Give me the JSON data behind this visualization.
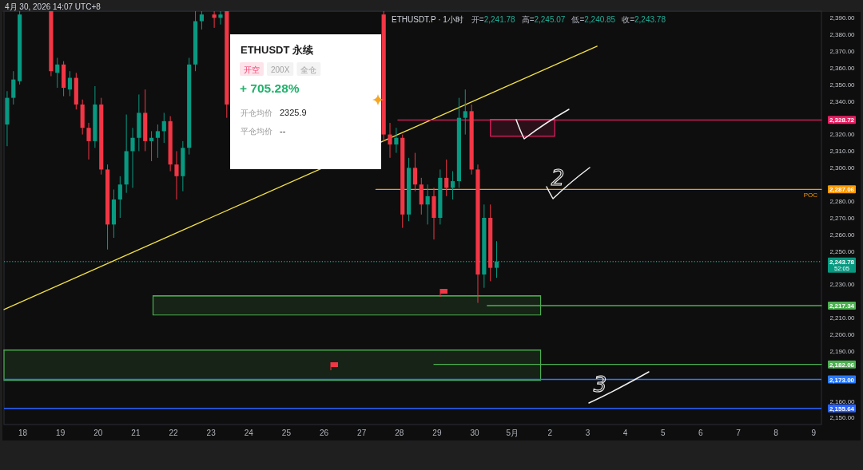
{
  "chart_data": {
    "type": "candlestick",
    "title": "ETHUSDT.P · 1小时",
    "x": [
      "2026-04-17T14:00",
      "2026-04-17T18:00",
      "2026-04-17T22:00",
      "2026-04-18T18:00",
      "2026-04-18T22:00",
      "2026-04-19T02:00",
      "2026-04-19T06:00",
      "2026-04-19T10:00",
      "2026-04-19T14:00",
      "2026-04-19T18:00",
      "2026-04-19T22:00",
      "2026-04-20T02:00",
      "2026-04-20T06:00",
      "2026-04-20T10:00",
      "2026-04-20T14:00",
      "2026-04-20T18:00",
      "2026-04-20T22:00",
      "2026-04-21T02:00",
      "2026-04-21T06:00",
      "2026-04-21T10:00",
      "2026-04-21T14:00",
      "2026-04-21T18:00",
      "2026-04-21T22:00",
      "2026-04-22T02:00",
      "2026-04-22T06:00",
      "2026-04-22T10:00",
      "2026-04-22T14:00",
      "2026-04-22T18:00",
      "2026-04-23T02:00",
      "2026-04-23T06:00",
      "2026-04-23T10:00",
      "2026-04-27T14:00",
      "2026-04-27T18:00",
      "2026-04-27T22:00",
      "2026-04-28T02:00",
      "2026-04-28T06:00",
      "2026-04-28T10:00",
      "2026-04-28T14:00",
      "2026-04-28T18:00",
      "2026-04-28T22:00",
      "2026-04-29T02:00",
      "2026-04-29T06:00",
      "2026-04-29T10:00",
      "2026-04-29T14:00",
      "2026-04-29T18:00",
      "2026-04-29T22:00",
      "2026-04-30T02:00",
      "2026-04-30T06:00",
      "2026-04-30T10:00",
      "2026-04-30T14:00"
    ],
    "ohlc": [
      [
        2326,
        2346,
        2313,
        2342
      ],
      [
        2342,
        2358,
        2338,
        2353
      ],
      [
        2352,
        2394,
        2350,
        2392
      ],
      [
        2394,
        2394,
        2355,
        2358
      ],
      [
        2357,
        2366,
        2348,
        2362
      ],
      [
        2362,
        2364,
        2343,
        2348
      ],
      [
        2347,
        2358,
        2343,
        2354
      ],
      [
        2354,
        2357,
        2335,
        2338
      ],
      [
        2338,
        2341,
        2320,
        2324
      ],
      [
        2324,
        2327,
        2305,
        2316
      ],
      [
        2316,
        2349,
        2312,
        2338
      ],
      [
        2338,
        2342,
        2296,
        2299
      ],
      [
        2299,
        2302,
        2251,
        2266
      ],
      [
        2266,
        2287,
        2258,
        2281
      ],
      [
        2281,
        2295,
        2270,
        2290
      ],
      [
        2290,
        2332,
        2285,
        2310
      ],
      [
        2310,
        2324,
        2288,
        2318
      ],
      [
        2318,
        2344,
        2310,
        2333
      ],
      [
        2333,
        2347,
        2310,
        2316
      ],
      [
        2316,
        2322,
        2304,
        2318
      ],
      [
        2318,
        2326,
        2306,
        2322
      ],
      [
        2322,
        2333,
        2315,
        2328
      ],
      [
        2328,
        2331,
        2298,
        2302
      ],
      [
        2302,
        2310,
        2281,
        2295
      ],
      [
        2295,
        2316,
        2286,
        2312
      ],
      [
        2312,
        2366,
        2308,
        2362
      ],
      [
        2362,
        2394,
        2358,
        2388
      ],
      [
        2388,
        2394,
        2383,
        2392
      ],
      [
        2392,
        2394,
        2384,
        2390
      ],
      [
        2390,
        2394,
        2386,
        2392
      ],
      [
        2394,
        2394,
        2330,
        2338
      ],
      [
        2392,
        2394,
        2316,
        2320
      ],
      [
        2320,
        2327,
        2306,
        2314
      ],
      [
        2314,
        2324,
        2309,
        2318
      ],
      [
        2318,
        2320,
        2264,
        2272
      ],
      [
        2272,
        2306,
        2268,
        2300
      ],
      [
        2300,
        2309,
        2286,
        2290
      ],
      [
        2290,
        2294,
        2272,
        2278
      ],
      [
        2278,
        2290,
        2266,
        2283
      ],
      [
        2283,
        2288,
        2257,
        2270
      ],
      [
        2270,
        2299,
        2266,
        2294
      ],
      [
        2294,
        2305,
        2283,
        2288
      ],
      [
        2288,
        2298,
        2281,
        2292
      ],
      [
        2292,
        2342,
        2288,
        2330
      ],
      [
        2330,
        2347,
        2320,
        2334
      ],
      [
        2334,
        2338,
        2296,
        2299
      ],
      [
        2299,
        2302,
        2219,
        2236
      ],
      [
        2236,
        2278,
        2228,
        2270
      ],
      [
        2270,
        2278,
        2232,
        2240
      ],
      [
        2240,
        2256,
        2234,
        2243.78
      ]
    ],
    "colors": [
      "#089981",
      "#089981",
      "#089981",
      "#f23645",
      "#089981",
      "#f23645",
      "#089981",
      "#f23645",
      "#f23645",
      "#f23645",
      "#089981",
      "#f23645",
      "#f23645",
      "#089981",
      "#089981",
      "#089981",
      "#089981",
      "#089981",
      "#f23645",
      "#089981",
      "#089981",
      "#089981",
      "#f23645",
      "#f23645",
      "#089981",
      "#089981",
      "#089981",
      "#089981",
      "#f23645",
      "#089981",
      "#f23645",
      "#f23645",
      "#f23645",
      "#089981",
      "#f23645",
      "#089981",
      "#f23645",
      "#f23645",
      "#089981",
      "#f23645",
      "#089981",
      "#f23645",
      "#089981",
      "#089981",
      "#089981",
      "#f23645",
      "#f23645",
      "#089981",
      "#f23645",
      "#089981"
    ],
    "series": [
      {
        "type": "line",
        "x": [
          "2026-04-21T11:00",
          "2026-05-01T18:00"
        ],
        "values": [
          2223.2,
          2223.2
        ],
        "lower": [
          2211.7,
          2211.7
        ],
        "upper": [
          2223.2,
          2223.2
        ],
        "color": "#4caf50"
      },
      {
        "type": "line",
        "x": [
          "2026-04-17T12:00",
          "2026-05-01T18:00"
        ],
        "values": [
          2190.7,
          2190.7
        ],
        "lower": [
          2172.5,
          2172.5
        ],
        "upper": [
          2190.7,
          2190.7
        ],
        "color": "#4caf50"
      },
      {
        "type": "line",
        "x": [
          "2026-04-30T10:00",
          "2026-05-02T03:00"
        ],
        "values": [
          2329,
          2329
        ],
        "lower": [
          2319,
          2319
        ],
        "upper": [
          2329,
          2329
        ],
        "color": "#e91e63"
      },
      {
        "type": "line",
        "x": [
          "2026-04-17T12:00",
          "2026-05-03T06:00"
        ],
        "values": [
          2215,
          2373
        ],
        "color": "#f2e046"
      },
      {
        "type": "line",
        "x": [
          "2026-04-27T23:00",
          "2026-05-09T05:00"
        ],
        "values": [
          2328.72,
          2328.72
        ],
        "color": "#e91e63",
        "value_labels": [
          null,
          "2,328.72"
        ]
      },
      {
        "type": "line",
        "name": "POC",
        "x": [
          "2026-04-27T09:00",
          "2026-05-09T05:00"
        ],
        "values": [
          2287.06,
          2287.06
        ],
        "color": "#ff9800",
        "value_labels": [
          null,
          "2,287.06"
        ]
      },
      {
        "type": "line",
        "x": [
          "2026-04-30T08:00",
          "2026-05-09T05:00"
        ],
        "values": [
          2217.34,
          2217.34
        ],
        "color": "#4caf50",
        "value_labels": [
          null,
          "2,217.34"
        ]
      },
      {
        "type": "line",
        "x": [
          "2026-04-28T22:00",
          "2026-05-09T05:00"
        ],
        "values": [
          2182.06,
          2182.06
        ],
        "color": "#4caf50",
        "value_labels": [
          null,
          "2,182.06"
        ]
      }
    ],
    "ref_lines": [
      {
        "axis": "y",
        "value": 2243.78,
        "label": "2,243.78",
        "color": "#089981",
        "line_style": "dotted"
      },
      {
        "axis": "y",
        "value": 2173,
        "label": "2,173.00",
        "color": "#2979ff"
      },
      {
        "axis": "y",
        "value": 2155.64,
        "label": "2,155.64",
        "color": "#2962ff"
      }
    ],
    "xlim": [
      "2026-04-17T12:00",
      "2026-05-09T05:00"
    ],
    "ylim": [
      2146,
      2394
    ],
    "xticks": [
      {
        "value": "2026-04-18",
        "label": "18"
      },
      {
        "value": "2026-04-19",
        "label": "19"
      },
      {
        "value": "2026-04-20",
        "label": "20"
      },
      {
        "value": "2026-04-21",
        "label": "21"
      },
      {
        "value": "2026-04-22",
        "label": "22"
      },
      {
        "value": "2026-04-23",
        "label": "23"
      },
      {
        "value": "2026-04-24",
        "label": "24"
      },
      {
        "value": "2026-04-25",
        "label": "25"
      },
      {
        "value": "2026-04-26",
        "label": "26"
      },
      {
        "value": "2026-04-27",
        "label": "27"
      },
      {
        "value": "2026-04-28",
        "label": "28"
      },
      {
        "value": "2026-04-29",
        "label": "29"
      },
      {
        "value": "2026-04-30",
        "label": "30"
      },
      {
        "value": "2026-05-01",
        "label": "5月"
      },
      {
        "value": "2026-05-02",
        "label": "2"
      },
      {
        "value": "2026-05-03",
        "label": "3"
      },
      {
        "value": "2026-05-04",
        "label": "4"
      },
      {
        "value": "2026-05-05",
        "label": "5"
      },
      {
        "value": "2026-05-06",
        "label": "6"
      },
      {
        "value": "2026-05-07",
        "label": "7"
      },
      {
        "value": "2026-05-08",
        "label": "8"
      },
      {
        "value": "2026-05-09",
        "label": "9"
      }
    ],
    "yticks": [
      {
        "value": 2150,
        "label": "2,150.00"
      },
      {
        "value": 2160,
        "label": "2,160.00"
      },
      {
        "value": 2190,
        "label": "2,190.00"
      },
      {
        "value": 2200,
        "label": "2,200.00"
      },
      {
        "value": 2210,
        "label": "2,210.00"
      },
      {
        "value": 2230,
        "label": "2,230.00"
      },
      {
        "value": 2250,
        "label": "2,250.00"
      },
      {
        "value": 2260,
        "label": "2,260.00"
      },
      {
        "value": 2270,
        "label": "2,270.00"
      },
      {
        "value": 2280,
        "label": "2,280.00"
      },
      {
        "value": 2300,
        "label": "2,300.00"
      },
      {
        "value": 2310,
        "label": "2,310.00"
      },
      {
        "value": 2320,
        "label": "2,320.00"
      },
      {
        "value": 2340,
        "label": "2,340.00"
      },
      {
        "value": 2350,
        "label": "2,350.00"
      },
      {
        "value": 2360,
        "label": "2,360.00"
      },
      {
        "value": 2370,
        "label": "2,370.00"
      },
      {
        "value": 2380,
        "label": "2,380.00"
      },
      {
        "value": 2390,
        "label": "2,390.00"
      }
    ],
    "annotations": [
      "4月 30, 2026 14:07 UTC+8",
      "开=2,241.78",
      "高=2,245.07",
      "低=2,240.85",
      "收=2,243.78",
      "ETHUSDT 永续",
      "开空",
      "200X",
      "全仓",
      "+ 705.28%",
      "开仓均价",
      "2325.9",
      "平仓均价",
      "--",
      "52:05",
      "2",
      "3"
    ]
  }
}
